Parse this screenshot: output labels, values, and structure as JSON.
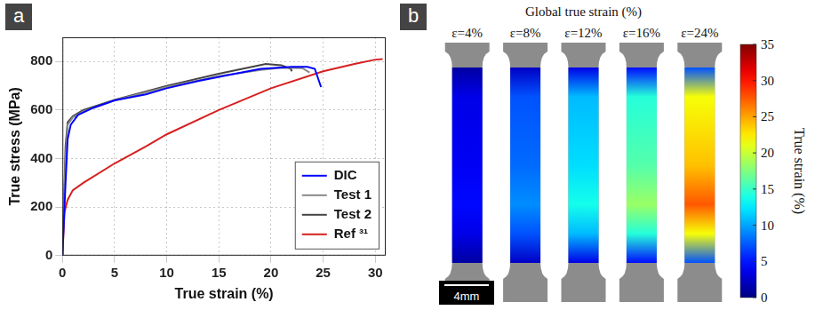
{
  "panel_labels": [
    "a",
    "b"
  ],
  "chart_data": {
    "type": "line",
    "x_label": "True strain (%)",
    "y_label": "True stress (MPa)",
    "xlim": [
      0,
      31
    ],
    "xticks": [
      0,
      5,
      10,
      15,
      20,
      25,
      30
    ],
    "ylim": [
      0,
      900
    ],
    "yticks": [
      0,
      200,
      400,
      600,
      800
    ],
    "grid": true,
    "legend": "lower right",
    "series": [
      {
        "name": "DIC",
        "color": "#0000ff",
        "x": [
          0,
          0.3,
          0.5,
          0.8,
          1.5,
          3,
          5,
          8,
          10,
          13,
          16,
          19,
          22,
          23.5,
          24.2,
          24.8
        ],
        "values": [
          0,
          300,
          480,
          540,
          580,
          610,
          640,
          665,
          690,
          720,
          745,
          770,
          778,
          778,
          770,
          695
        ]
      },
      {
        "name": "Test 1",
        "color": "#888888",
        "x": [
          0,
          0.3,
          0.5,
          1,
          2,
          5,
          10,
          15,
          19,
          21,
          23,
          23.7
        ],
        "values": [
          0,
          400,
          540,
          570,
          595,
          640,
          695,
          740,
          765,
          775,
          773,
          755
        ]
      },
      {
        "name": "Test 2",
        "color": "#444444",
        "x": [
          0,
          0.3,
          0.5,
          1,
          2,
          5,
          10,
          15,
          19.5,
          21,
          21.9,
          22
        ],
        "values": [
          0,
          450,
          550,
          575,
          600,
          642,
          700,
          750,
          790,
          785,
          770,
          760
        ]
      },
      {
        "name": "Ref ³¹",
        "color": "#d62020",
        "x": [
          0,
          0.2,
          0.5,
          1,
          2,
          5,
          8,
          10,
          15,
          20,
          25,
          28,
          30,
          30.7
        ],
        "values": [
          0,
          180,
          230,
          270,
          300,
          380,
          450,
          500,
          600,
          690,
          760,
          790,
          808,
          810
        ]
      }
    ]
  },
  "dic_panel": {
    "title": "Global true strain (%)",
    "frames": [
      {
        "label": "ε=4%",
        "strain": 4
      },
      {
        "label": "ε=8%",
        "strain": 8
      },
      {
        "label": "ε=12%",
        "strain": 12
      },
      {
        "label": "ε=16%",
        "strain": 16
      },
      {
        "label": "ε=24%",
        "strain": 24
      }
    ],
    "colorbar": {
      "label": "True strain (%)",
      "range": [
        0,
        35
      ],
      "ticks": [
        0,
        5,
        10,
        15,
        20,
        25,
        30,
        35
      ]
    },
    "scale_bar": "4mm"
  }
}
